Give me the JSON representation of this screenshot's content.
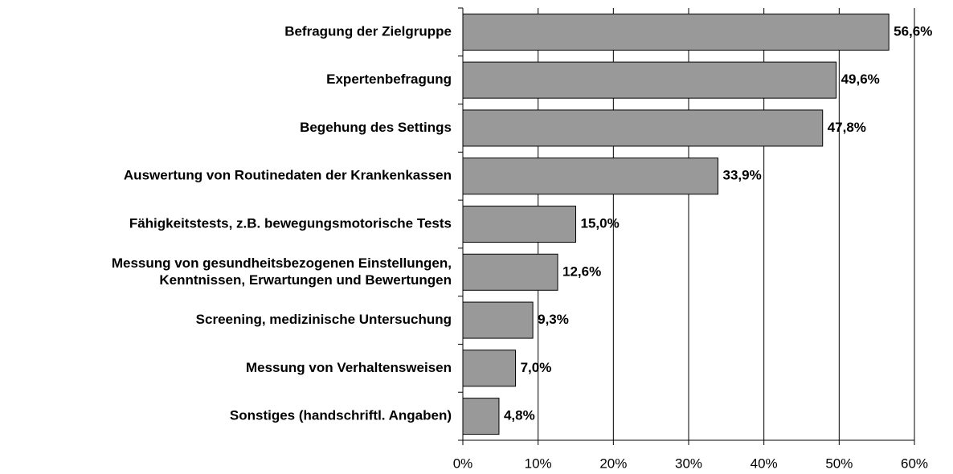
{
  "chart_data": {
    "type": "bar",
    "categories": [
      "Befragung der Zielgruppe",
      "Expertenbefragung",
      "Begehung des Settings",
      "Auswertung von Routinedaten der Krankenkassen",
      "Fähigkeitstests, z.B. bewegungsmotorische Tests",
      [
        "Messung von gesundheitsbezogenen Einstellungen,",
        "Kenntnissen, Erwartungen und Bewertungen"
      ],
      "Screening, medizinische Untersuchung",
      "Messung von Verhaltensweisen",
      "Sonstiges (handschriftl. Angaben)"
    ],
    "values": [
      56.6,
      49.6,
      47.8,
      33.9,
      15.0,
      12.6,
      9.3,
      7.0,
      4.8
    ],
    "value_labels": [
      "56,6%",
      "49,6%",
      "47,8%",
      "33,9%",
      "15,0%",
      "12,6%",
      "9,3%",
      "7,0%",
      "4,8%"
    ],
    "color": "#999999",
    "xlim": [
      0,
      60
    ],
    "xticks": [
      {
        "value": 0,
        "label": "0%"
      },
      {
        "value": 10,
        "label": "10%"
      },
      {
        "value": 20,
        "label": "20%"
      },
      {
        "value": 30,
        "label": "30%"
      },
      {
        "value": 40,
        "label": "40%"
      },
      {
        "value": 50,
        "label": "50%"
      },
      {
        "value": 60,
        "label": "60%"
      }
    ],
    "grid": true
  }
}
